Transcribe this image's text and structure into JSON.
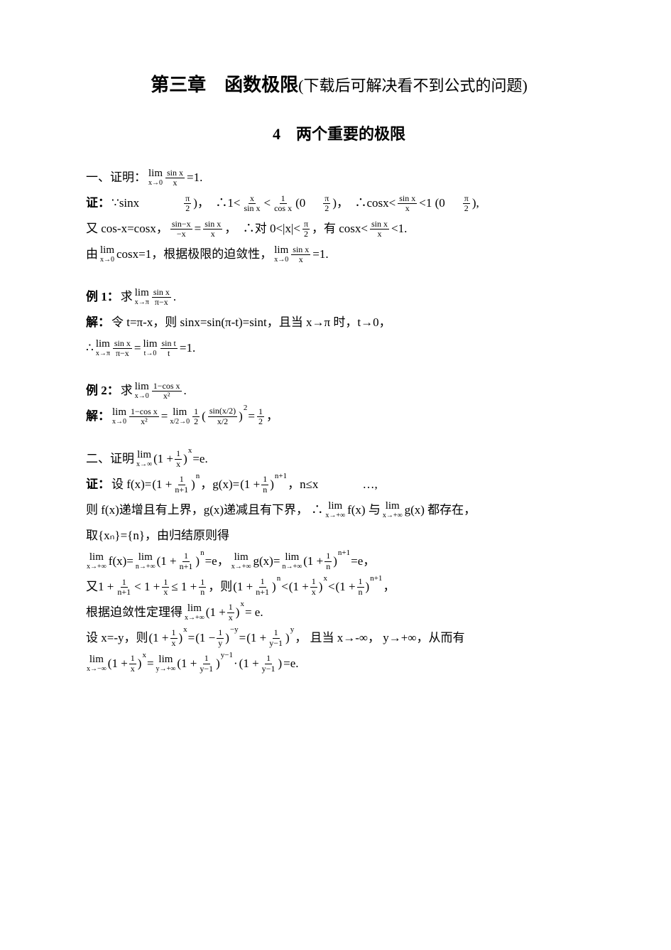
{
  "colors": {
    "text": "#000000",
    "bg": "#ffffff"
  },
  "title_main": "第三章　函数极限",
  "title_paren": "(下载后可解决看不到公式的问题)",
  "subtitle": "4　两个重要的极限",
  "labels": {
    "proof": "证：",
    "solution": "解：",
    "example1": "例 1：",
    "example2": "例 2：",
    "one": "一、证明：",
    "two": "二、证明"
  },
  "t": {
    "l1_tail": "=1.",
    "l2a": "∵sinx",
    "l2b": ")，　∴1<",
    "l2c": " (0",
    "l2d": ")，　∴cosx<",
    "l2e": "<1 (0",
    "l2f": "),",
    "l3a": "又 cos-x=cosx，",
    "l3b": "，　∴对 0<|x|<",
    "l3c": "，有 cosx<",
    "l3d": "<1.",
    "l4a": "由",
    "l4b": "cosx=1，根据极限的迫敛性，",
    "l4c": "=1.",
    "ex1q": "求",
    "ex1q2": ".",
    "ex1s1": "令 t=π-x，则 sinx=sin(π-t)=sint，且当 x→π 时，t→0，",
    "ex1s2a": "∴ ",
    "ex1s2b": "=",
    "ex1s2c": "=1.",
    "ex2q": "求",
    "ex2q2": ".",
    "ex2s_eq": "=",
    "ex2s_tail": "，",
    "two_tail": "=e.",
    "two_l1a": "设 f(x)= ",
    "two_l1b": "，g(x)= ",
    "two_l1c": "，n≤x",
    "two_l1d": "…,",
    "two_l2": "则 f(x)递增且有上界，g(x)递减且有下界， ∴ ",
    "two_l2b": "f(x) 与 ",
    "two_l2c": "g(x) 都存在，",
    "two_l3": "取{xₙ}={n}，由归结原则得",
    "two_l4a": "f(x)= ",
    "two_l4b": "=e，",
    "two_l4c": "g(x)= ",
    "two_l4d": "=e，",
    "two_l5a": "又1 + ",
    "two_l5b": " < 1 + ",
    "two_l5c": " ≤ 1 + ",
    "two_l5d": "，则",
    "two_l5e": "，",
    "two_l6a": "根据迫敛性定理得",
    "two_l6b": " = e.",
    "two_l7a": "设 x=-y，则",
    "two_l7b": "=",
    "two_l7c": "=",
    "two_l7d": "， 且当 x→-∞， y→+∞，从而有",
    "two_l8a": " = ",
    "two_l8b": " · ",
    "two_l8c": "=e."
  },
  "math": {
    "lim_x0": "x→0",
    "lim_xpi": "x→π",
    "lim_t0": "t→0",
    "lim_xinf": "x→∞",
    "lim_xpinf": "x→+∞",
    "lim_xninf": "x→−∞",
    "lim_npinf": "n→+∞",
    "lim_ypinf": "y→+∞",
    "lim_x2_0": "x/2→0",
    "lim": "lim",
    "sinx_over_x": {
      "num": "sin x",
      "den": "x"
    },
    "x_over_sinx": {
      "num": "x",
      "den": "sin x"
    },
    "one_over_cosx": {
      "num": "1",
      "den": "cos x"
    },
    "pi_over_2": {
      "num": "π",
      "den": "2"
    },
    "sinnegx_over_negx": {
      "num": "sin−x",
      "den": "−x"
    },
    "sinx_over_pimx": {
      "num": "sin x",
      "den": "π−x"
    },
    "sint_over_t": {
      "num": "sin t",
      "den": "t"
    },
    "onemcos_over_x2": {
      "num": "1−cos x",
      "den": "x²"
    },
    "half": {
      "num": "1",
      "den": "2"
    },
    "sinhx_over_hx": {
      "num": "sin(x/2)",
      "den": "x/2"
    },
    "one_over_x": {
      "num": "1",
      "den": "x"
    },
    "one_over_n": {
      "num": "1",
      "den": "n"
    },
    "one_over_np1": {
      "num": "1",
      "den": "n+1"
    },
    "one_over_y": {
      "num": "1",
      "den": "y"
    },
    "one_over_ym1": {
      "num": "1",
      "den": "y−1"
    },
    "lt": "<",
    "exp_x": "x",
    "exp_n": "n",
    "exp_np1": "n+1",
    "exp_ny": "−y",
    "exp_y": "y",
    "exp_ym1": "y−1",
    "exp_2": "2"
  }
}
